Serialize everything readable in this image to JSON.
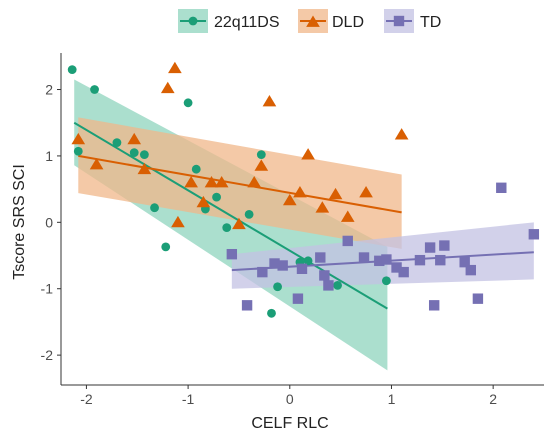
{
  "chart_data": {
    "type": "scatter",
    "xlabel": "CELF RLC",
    "ylabel": "Tscore SRS SCI",
    "xlim": [
      -2.25,
      2.5
    ],
    "ylim": [
      -2.45,
      2.55
    ],
    "x_ticks": [
      -2,
      -1,
      0,
      1,
      2
    ],
    "y_ticks": [
      -2,
      -1,
      0,
      1,
      2
    ],
    "x_tick_labels": [
      "-2",
      "-1",
      "0",
      "1",
      "2"
    ],
    "y_tick_labels": [
      "-2",
      "-1",
      "0",
      "1",
      "2"
    ],
    "grid": false,
    "legend_position": "top",
    "series": [
      {
        "name": "22q11DS",
        "color": "#1b9e77",
        "fill": "#8fd4bd",
        "marker": "circle",
        "points": [
          [
            -2.14,
            2.3
          ],
          [
            -2.08,
            1.07
          ],
          [
            -1.92,
            2.0
          ],
          [
            -1.7,
            1.2
          ],
          [
            -1.53,
            1.05
          ],
          [
            -1.43,
            1.02
          ],
          [
            -1.33,
            0.22
          ],
          [
            -1.22,
            -0.37
          ],
          [
            -1.0,
            1.8
          ],
          [
            -0.92,
            0.8
          ],
          [
            -0.83,
            0.2
          ],
          [
            -0.72,
            0.38
          ],
          [
            -0.62,
            -0.08
          ],
          [
            -0.4,
            0.12
          ],
          [
            -0.28,
            1.02
          ],
          [
            -0.18,
            -1.37
          ],
          [
            -0.12,
            -0.97
          ],
          [
            0.1,
            -0.6
          ],
          [
            0.18,
            -0.58
          ],
          [
            0.47,
            -0.95
          ],
          [
            0.95,
            -0.88
          ]
        ],
        "fit_line": [
          [
            -2.12,
            1.5
          ],
          [
            0.96,
            -1.3
          ]
        ],
        "ci_band": {
          "x": [
            -2.12,
            0.96
          ],
          "upper": [
            2.15,
            -0.37
          ],
          "lower": [
            0.86,
            -2.23
          ]
        }
      },
      {
        "name": "DLD",
        "color": "#d95f02",
        "fill": "#f0b78a",
        "marker": "triangle",
        "points": [
          [
            -2.08,
            1.25
          ],
          [
            -1.9,
            0.87
          ],
          [
            -1.53,
            1.25
          ],
          [
            -1.43,
            0.8
          ],
          [
            -1.2,
            2.02
          ],
          [
            -1.13,
            2.32
          ],
          [
            -1.1,
            0.0
          ],
          [
            -0.97,
            0.6
          ],
          [
            -0.85,
            0.3
          ],
          [
            -0.77,
            0.6
          ],
          [
            -0.67,
            0.6
          ],
          [
            -0.5,
            -0.03
          ],
          [
            -0.35,
            0.6
          ],
          [
            -0.28,
            0.85
          ],
          [
            -0.2,
            1.82
          ],
          [
            0.0,
            0.33
          ],
          [
            0.1,
            0.45
          ],
          [
            0.18,
            1.02
          ],
          [
            0.32,
            0.22
          ],
          [
            0.45,
            0.42
          ],
          [
            0.57,
            0.08
          ],
          [
            0.75,
            0.45
          ],
          [
            1.1,
            1.32
          ]
        ],
        "fit_line": [
          [
            -2.08,
            1.0
          ],
          [
            1.1,
            0.15
          ]
        ],
        "ci_band": {
          "x": [
            -2.08,
            1.1
          ],
          "upper": [
            1.58,
            0.72
          ],
          "lower": [
            0.44,
            -0.4
          ]
        }
      },
      {
        "name": "TD",
        "color": "#7570b3",
        "fill": "#c3c1e3",
        "marker": "square",
        "points": [
          [
            -0.57,
            -0.48
          ],
          [
            -0.42,
            -1.25
          ],
          [
            -0.27,
            -0.75
          ],
          [
            -0.15,
            -0.62
          ],
          [
            -0.07,
            -0.65
          ],
          [
            0.08,
            -1.15
          ],
          [
            0.12,
            -0.7
          ],
          [
            0.3,
            -0.53
          ],
          [
            0.34,
            -0.8
          ],
          [
            0.38,
            -0.95
          ],
          [
            0.57,
            -0.28
          ],
          [
            0.73,
            -0.53
          ],
          [
            0.88,
            -0.58
          ],
          [
            0.95,
            -0.56
          ],
          [
            1.05,
            -0.68
          ],
          [
            1.12,
            -0.75
          ],
          [
            1.28,
            -0.57
          ],
          [
            1.38,
            -0.38
          ],
          [
            1.42,
            -1.25
          ],
          [
            1.48,
            -0.57
          ],
          [
            1.52,
            -0.35
          ],
          [
            1.72,
            -0.6
          ],
          [
            1.78,
            -0.72
          ],
          [
            1.85,
            -1.15
          ],
          [
            2.08,
            0.52
          ],
          [
            2.4,
            -0.18
          ]
        ],
        "fit_line": [
          [
            -0.57,
            -0.72
          ],
          [
            2.4,
            -0.45
          ]
        ],
        "ci_band": {
          "x": [
            -0.57,
            2.4
          ],
          "upper": [
            -0.48,
            0.0
          ],
          "lower": [
            -1.0,
            -0.86
          ]
        }
      }
    ]
  }
}
